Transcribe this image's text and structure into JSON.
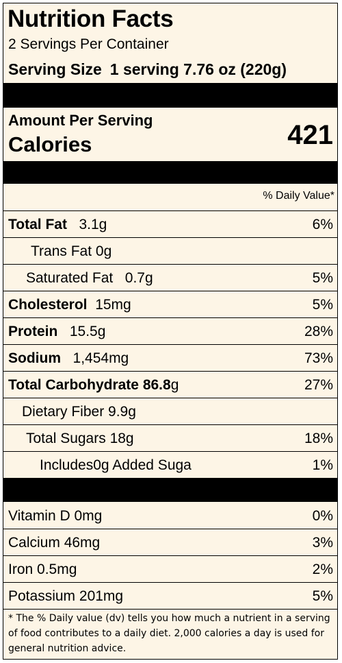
{
  "title": "Nutrition Facts",
  "servings_per_container": "2 Servings Per Container",
  "serving_size_label": "Serving Size",
  "serving_size_value": "1 serving 7.76 oz (220g)",
  "amount_per_serving": "Amount Per Serving",
  "calories_label": "Calories",
  "calories_value": "421",
  "daily_value_header": "% Daily Value*",
  "nutrients": [
    {
      "name": "Total Fat",
      "amount": "3.1g",
      "dv": "6%"
    },
    {
      "name": "Trans Fat",
      "amount": "0g",
      "dv": ""
    },
    {
      "name": "Saturated Fat",
      "amount": "0.7g",
      "dv": "5%"
    },
    {
      "name": "Cholesterol",
      "amount": "15mg",
      "dv": "5%"
    },
    {
      "name": "Protein",
      "amount": "15.5g",
      "dv": "28%"
    },
    {
      "name": "Sodium",
      "amount": "1,454mg",
      "dv": "73%"
    },
    {
      "name": "Total Carbohydrate",
      "amount": "86.8",
      "unit": "g",
      "dv": "27%"
    },
    {
      "name": "Dietary Fiber",
      "amount": "9.9g",
      "dv": ""
    },
    {
      "name": "Total Sugars",
      "amount": "18g",
      "dv": "18%"
    },
    {
      "name": "Includes0g Added Suga",
      "amount": "",
      "dv": "1%"
    }
  ],
  "vitamins": [
    {
      "name": "Vitamin D",
      "amount": "0mg",
      "dv": "0%"
    },
    {
      "name": "Calcium",
      "amount": "46mg",
      "dv": "3%"
    },
    {
      "name": "Iron",
      "amount": "0.5mg",
      "dv": "2%"
    },
    {
      "name": "Potassium",
      "amount": "201mg",
      "dv": "5%"
    }
  ],
  "footnote": "* The % Daily value (dv) tells you how much a nutrient in a serving of food contributes to a daily diet. 2,000 calories a day is used for general nutrition advice."
}
